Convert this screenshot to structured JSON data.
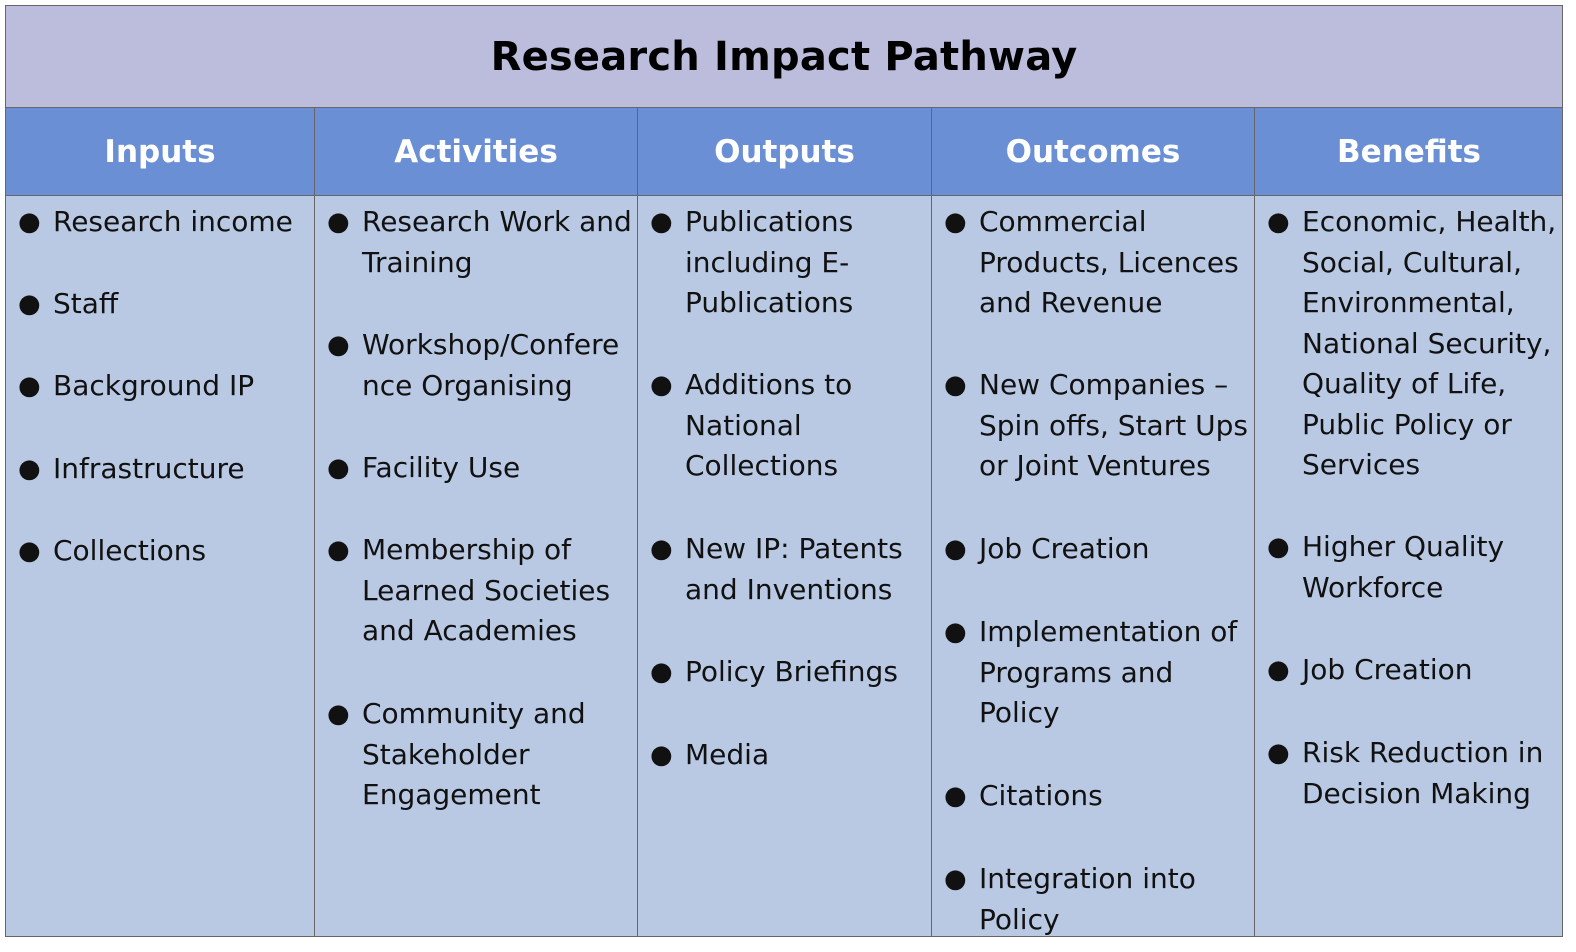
{
  "title": "Research Impact Pathway",
  "columns": [
    {
      "heading": "Inputs",
      "items": [
        "Research income",
        "Staff",
        "Background IP",
        "Infrastructure",
        "Collections"
      ]
    },
    {
      "heading": "Activities",
      "items": [
        "Research Work and Training",
        "Workshop/Confere nce Organising",
        "Facility Use",
        "Membership of Learned Societies and Academies",
        "Community and Stakeholder Engagement"
      ]
    },
    {
      "heading": "Outputs",
      "items": [
        "Publications including E-Publications",
        "Additions to National Collections",
        "New IP: Patents and Inventions",
        "Policy Briefings",
        "Media"
      ]
    },
    {
      "heading": "Outcomes",
      "items": [
        "Commercial Products, Licences and Revenue",
        "New Companies – Spin offs, Start Ups or Joint Ventures",
        "Job Creation",
        "Implementation of Programs and Policy",
        "Citations",
        "Integration into Policy"
      ]
    },
    {
      "heading": "Benefits",
      "items": [
        "Economic, Health, Social, Cultural, Environmental, National Security, Quality of Life, Public Policy or Services",
        "Higher Quality Workforce",
        "Job Creation",
        "Risk Reduction in Decision Making"
      ]
    }
  ],
  "colors": {
    "title_bg": "#bcbcdc",
    "header_bg": "#6a8fd4",
    "body_bg": "#b9c9e4",
    "border": "#666666"
  }
}
